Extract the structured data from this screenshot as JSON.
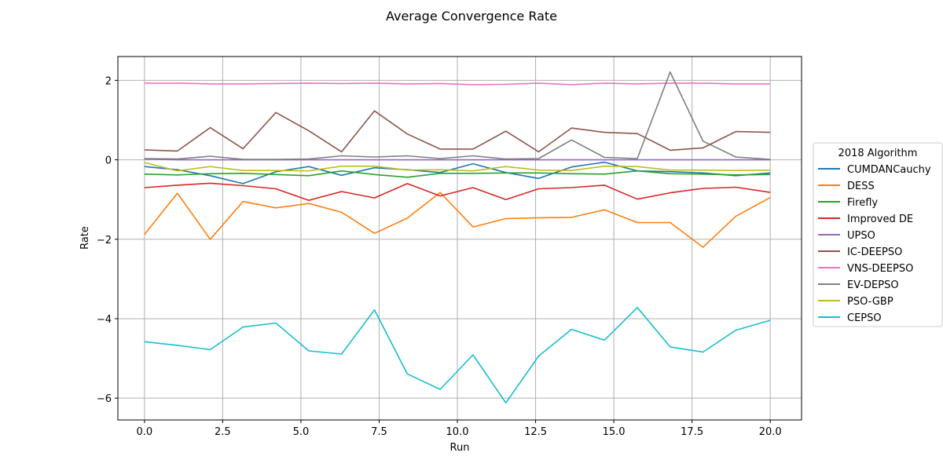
{
  "chart_data": {
    "type": "line",
    "title": "Average Convergence Rate",
    "xlabel": "Run",
    "ylabel": "Rate",
    "xlim": [
      -0.85,
      21.0
    ],
    "ylim": [
      -6.55,
      2.6
    ],
    "xticks": [
      0.0,
      2.5,
      5.0,
      7.5,
      10.0,
      12.5,
      15.0,
      17.5,
      20.0
    ],
    "xtick_labels": [
      "0.0",
      "2.5",
      "5.0",
      "7.5",
      "10.0",
      "12.5",
      "15.0",
      "17.5",
      "20.0"
    ],
    "yticks": [
      2,
      0,
      -2,
      -4,
      -6
    ],
    "ytick_labels": [
      "2",
      "0",
      "−2",
      "−4",
      "−6"
    ],
    "grid": true,
    "legend_title": "2018 Algorithm",
    "legend_position": "outside-right",
    "x": [
      0.0,
      1.05,
      2.1,
      3.15,
      4.2,
      5.25,
      6.3,
      7.35,
      8.4,
      9.45,
      10.5,
      11.55,
      12.6,
      13.65,
      14.7,
      15.75,
      16.8,
      17.85,
      18.9,
      20.0
    ],
    "series": [
      {
        "name": "CUMDANCauchy",
        "color": "#1f77b4",
        "values": [
          -0.17,
          -0.25,
          -0.4,
          -0.6,
          -0.3,
          -0.17,
          -0.39,
          -0.2,
          -0.25,
          -0.32,
          -0.1,
          -0.32,
          -0.47,
          -0.18,
          -0.06,
          -0.28,
          -0.3,
          -0.33,
          -0.4,
          -0.33
        ]
      },
      {
        "name": "DESS",
        "color": "#ff7f0e",
        "values": [
          -1.88,
          -0.84,
          -2.0,
          -1.05,
          -1.21,
          -1.1,
          -1.32,
          -1.85,
          -1.47,
          -0.82,
          -1.69,
          -1.48,
          -1.46,
          -1.45,
          -1.26,
          -1.58,
          -1.58,
          -2.2,
          -1.42,
          -0.95
        ]
      },
      {
        "name": "Firefly",
        "color": "#2ca02c",
        "values": [
          -0.36,
          -0.38,
          -0.35,
          -0.34,
          -0.37,
          -0.4,
          -0.28,
          -0.37,
          -0.44,
          -0.34,
          -0.34,
          -0.33,
          -0.33,
          -0.35,
          -0.36,
          -0.28,
          -0.35,
          -0.36,
          -0.38,
          -0.37
        ]
      },
      {
        "name": "Improved DE",
        "color": "#d62728",
        "values": [
          -0.7,
          -0.64,
          -0.59,
          -0.65,
          -0.73,
          -1.02,
          -0.8,
          -0.96,
          -0.6,
          -0.91,
          -0.7,
          -1.0,
          -0.73,
          -0.7,
          -0.64,
          -0.99,
          -0.83,
          -0.72,
          -0.69,
          -0.82
        ]
      },
      {
        "name": "UPSO",
        "color": "#9467bd",
        "values": [
          0.02,
          0.0,
          0.0,
          0.0,
          0.0,
          0.0,
          0.0,
          0.0,
          0.0,
          0.0,
          0.0,
          0.0,
          0.0,
          0.0,
          0.0,
          0.0,
          0.0,
          0.0,
          0.0,
          0.0
        ]
      },
      {
        "name": "IC-DEEPSO",
        "color": "#8c564b",
        "values": [
          0.25,
          0.22,
          0.81,
          0.28,
          1.19,
          0.73,
          0.2,
          1.23,
          0.65,
          0.27,
          0.27,
          0.72,
          0.2,
          0.8,
          0.69,
          0.66,
          0.24,
          0.3,
          0.71,
          0.69
        ]
      },
      {
        "name": "VNS-DEEPSO",
        "color": "#e377c2",
        "values": [
          1.93,
          1.93,
          1.91,
          1.91,
          1.92,
          1.93,
          1.92,
          1.93,
          1.91,
          1.92,
          1.89,
          1.9,
          1.93,
          1.89,
          1.93,
          1.91,
          1.93,
          1.93,
          1.91,
          1.91
        ]
      },
      {
        "name": "EV-DEPSO",
        "color": "#7f7f7f",
        "values": [
          0.03,
          0.02,
          0.09,
          0.01,
          0.01,
          0.02,
          0.1,
          0.07,
          0.1,
          0.03,
          0.1,
          0.02,
          0.03,
          0.5,
          0.06,
          0.03,
          2.21,
          0.47,
          0.07,
          0.01
        ]
      },
      {
        "name": "PSO-GBP",
        "color": "#bcbd22",
        "values": [
          -0.07,
          -0.28,
          -0.17,
          -0.27,
          -0.27,
          -0.28,
          -0.16,
          -0.16,
          -0.26,
          -0.25,
          -0.28,
          -0.17,
          -0.26,
          -0.27,
          -0.16,
          -0.17,
          -0.26,
          -0.26,
          -0.27,
          -0.26
        ]
      },
      {
        "name": "CEPSO",
        "color": "#17becf",
        "values": [
          -4.58,
          -4.67,
          -4.78,
          -4.21,
          -4.11,
          -4.81,
          -4.89,
          -3.78,
          -5.39,
          -5.78,
          -4.91,
          -6.12,
          -4.94,
          -4.27,
          -4.54,
          -3.72,
          -4.71,
          -4.84,
          -4.29,
          -4.04
        ]
      }
    ]
  }
}
